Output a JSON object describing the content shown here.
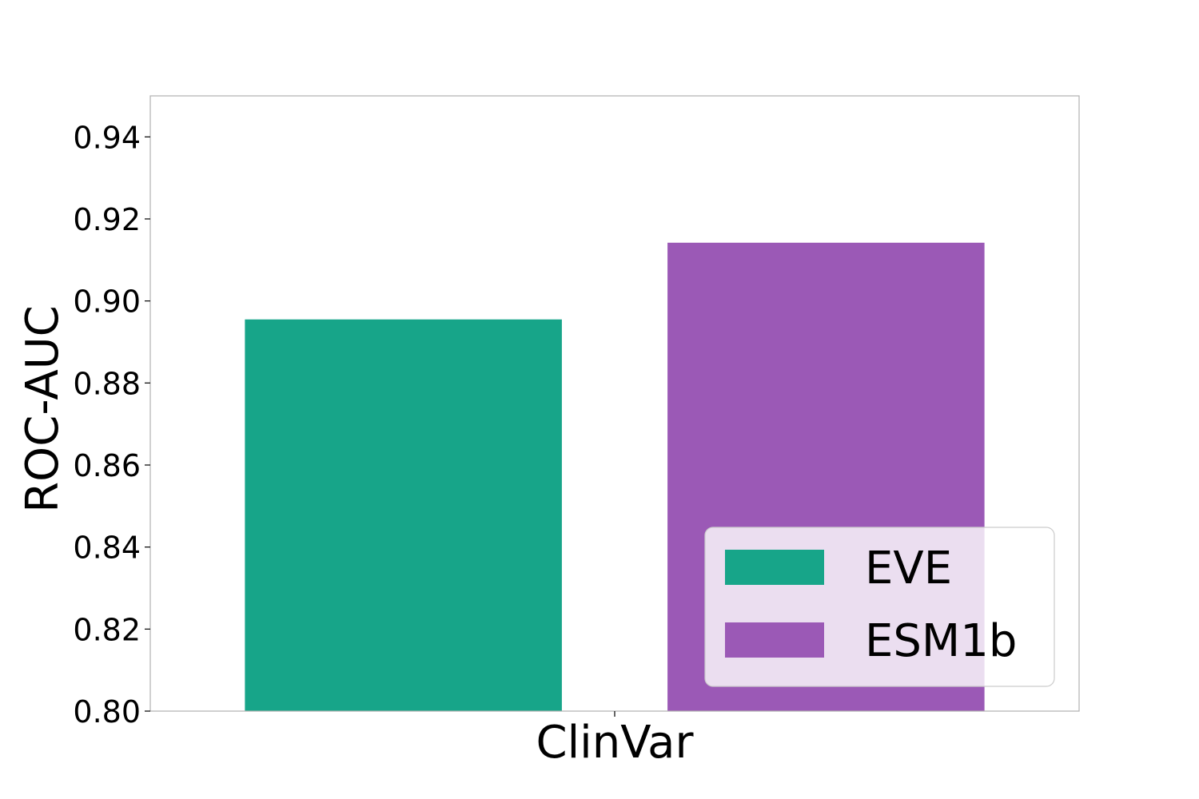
{
  "chart_data": {
    "type": "bar",
    "categories": [
      "ClinVar"
    ],
    "series": [
      {
        "name": "EVE",
        "values": [
          0.8955
        ],
        "color": "#17a589"
      },
      {
        "name": "ESM1b",
        "values": [
          0.9142
        ],
        "color": "#9b59b6"
      }
    ],
    "xlabel": "",
    "ylabel": "ROC-AUC",
    "ylim": [
      0.8,
      0.95
    ],
    "yticks": [
      "0.80",
      "0.82",
      "0.84",
      "0.86",
      "0.88",
      "0.90",
      "0.92",
      "0.94"
    ],
    "legend_position": "lower-right",
    "grid": false,
    "colors": {
      "axis": "#b0b0b0",
      "legend_bg": "rgba(255,255,255,0.8)",
      "legend_border": "#cccccc"
    }
  }
}
